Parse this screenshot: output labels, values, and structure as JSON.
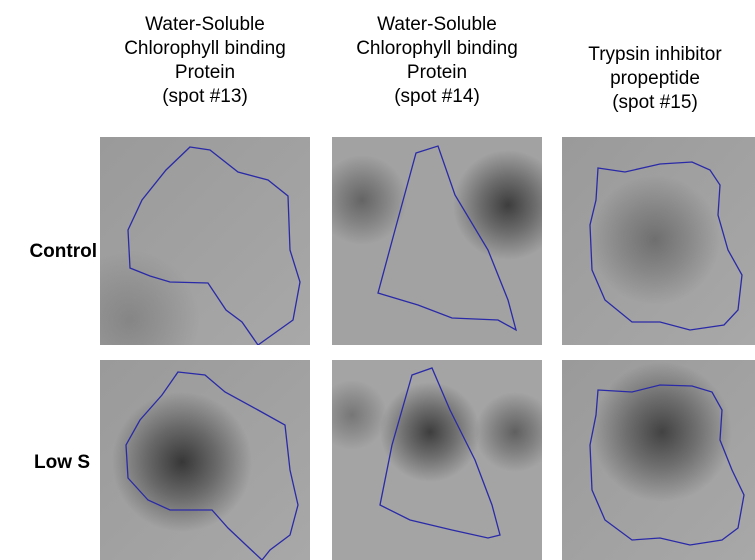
{
  "columns": [
    {
      "lines": [
        "Water-Soluble",
        "Chlorophyll binding",
        "Protein",
        "(spot #13)"
      ]
    },
    {
      "lines": [
        "Water-Soluble",
        "Chlorophyll binding",
        "Protein",
        "(spot #14)"
      ]
    },
    {
      "lines": [
        "Trypsin inhibitor",
        "propeptide",
        "(spot #15)"
      ]
    }
  ],
  "rows": [
    "Control",
    "Low S"
  ]
}
